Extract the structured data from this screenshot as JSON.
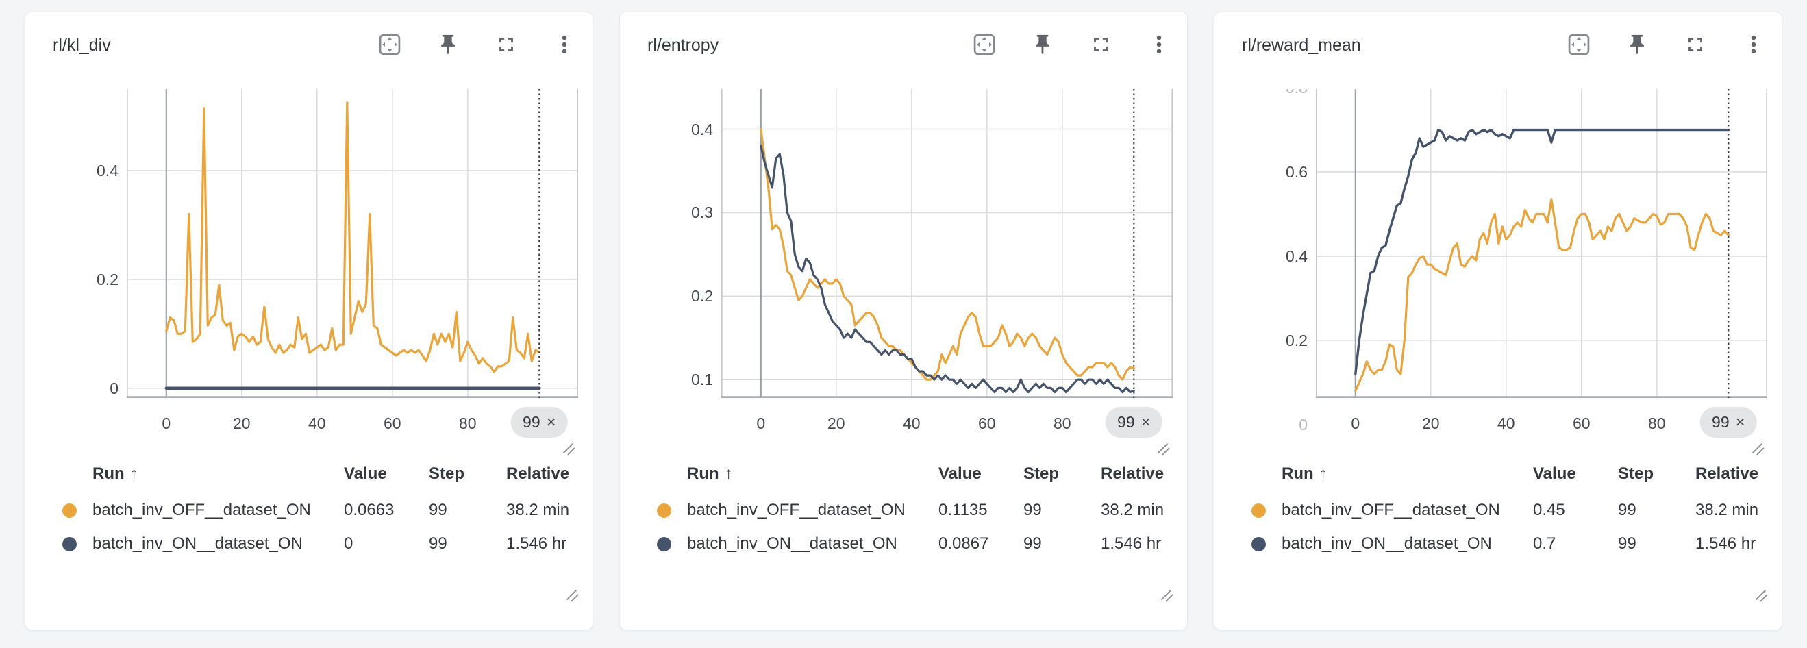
{
  "page": {
    "background": "#f4f5f6"
  },
  "colors": {
    "run_off": "#E9A53C",
    "run_on": "#45536B",
    "badge_bg": "#e4e5e7",
    "grid": "#d9dadc",
    "axis": "#a9acb0"
  },
  "icons": [
    "pan-view-icon",
    "pin-icon",
    "fullscreen-icon",
    "kebab-menu-icon",
    "resize-handle-icon",
    "dismiss-icon"
  ],
  "legend_header": {
    "run": "Run",
    "sort": "↑",
    "value": "Value",
    "step": "Step",
    "relative": "Relative"
  },
  "panels": [
    {
      "title": "rl/kl_div",
      "badge": {
        "step": "99",
        "dismiss": "×"
      },
      "legend": {
        "rows": [
          {
            "run": "batch_inv_OFF__dataset_ON",
            "value": "0.0663",
            "step": "99",
            "relative": "38.2 min"
          },
          {
            "run": "batch_inv_ON__dataset_ON",
            "value": "0",
            "step": "99",
            "relative": "1.546 hr"
          }
        ]
      }
    },
    {
      "title": "rl/entropy",
      "badge": {
        "step": "99",
        "dismiss": "×"
      },
      "legend": {
        "rows": [
          {
            "run": "batch_inv_OFF__dataset_ON",
            "value": "0.1135",
            "step": "99",
            "relative": "38.2 min"
          },
          {
            "run": "batch_inv_ON__dataset_ON",
            "value": "0.0867",
            "step": "99",
            "relative": "1.546 hr"
          }
        ]
      }
    },
    {
      "title": "rl/reward_mean",
      "badge": {
        "step": "99",
        "dismiss": "×"
      },
      "legend": {
        "rows": [
          {
            "run": "batch_inv_OFF__dataset_ON",
            "value": "0.45",
            "step": "99",
            "relative": "38.2 min"
          },
          {
            "run": "batch_inv_ON__dataset_ON",
            "value": "0.7",
            "step": "99",
            "relative": "1.546 hr"
          }
        ]
      }
    }
  ],
  "chart_data": [
    {
      "type": "line",
      "title": "rl/kl_div",
      "xlabel": "",
      "ylabel": "",
      "xlim": [
        -10.5,
        109.3
      ],
      "ylim": [
        -0.018,
        0.55
      ],
      "xticks": [
        0,
        20,
        40,
        60,
        80
      ],
      "yticks": [
        {
          "v": 0,
          "label": "0"
        },
        {
          "v": 0.2,
          "label": "0.2"
        },
        {
          "v": 0.4,
          "label": "0.4"
        }
      ],
      "crosshair_x": 99,
      "grid": true,
      "legend_position": "below",
      "series": [
        {
          "name": "batch_inv_OFF__dataset_ON",
          "color": "#E9A53C",
          "width": 3.2,
          "values": [
            0.105,
            0.13,
            0.125,
            0.1,
            0.1,
            0.105,
            0.32,
            0.085,
            0.09,
            0.1,
            0.515,
            0.115,
            0.13,
            0.135,
            0.19,
            0.125,
            0.115,
            0.12,
            0.07,
            0.095,
            0.1,
            0.095,
            0.085,
            0.095,
            0.08,
            0.085,
            0.15,
            0.09,
            0.075,
            0.065,
            0.08,
            0.065,
            0.07,
            0.08,
            0.075,
            0.13,
            0.09,
            0.1,
            0.065,
            0.07,
            0.075,
            0.08,
            0.07,
            0.075,
            0.11,
            0.07,
            0.08,
            0.08,
            0.525,
            0.1,
            0.13,
            0.16,
            0.14,
            0.155,
            0.32,
            0.115,
            0.11,
            0.08,
            0.075,
            0.07,
            0.065,
            0.06,
            0.065,
            0.07,
            0.065,
            0.07,
            0.065,
            0.07,
            0.06,
            0.05,
            0.07,
            0.1,
            0.08,
            0.1,
            0.085,
            0.1,
            0.075,
            0.14,
            0.05,
            0.065,
            0.085,
            0.07,
            0.06,
            0.045,
            0.055,
            0.045,
            0.04,
            0.03,
            0.04,
            0.04,
            0.045,
            0.05,
            0.13,
            0.07,
            0.065,
            0.055,
            0.1,
            0.05,
            0.07,
            0.0663
          ]
        },
        {
          "name": "batch_inv_ON__dataset_ON",
          "color": "#45536B",
          "width": 4.5,
          "values": [
            0,
            0,
            0,
            0,
            0,
            0,
            0,
            0,
            0,
            0,
            0,
            0,
            0,
            0,
            0,
            0,
            0,
            0,
            0,
            0,
            0,
            0,
            0,
            0,
            0,
            0,
            0,
            0,
            0,
            0,
            0,
            0,
            0,
            0,
            0,
            0,
            0,
            0,
            0,
            0,
            0,
            0,
            0,
            0,
            0,
            0,
            0,
            0,
            0,
            0,
            0,
            0,
            0,
            0,
            0,
            0,
            0,
            0,
            0,
            0,
            0,
            0,
            0,
            0,
            0,
            0,
            0,
            0,
            0,
            0,
            0,
            0,
            0,
            0,
            0,
            0,
            0,
            0,
            0,
            0,
            0,
            0,
            0,
            0,
            0,
            0,
            0,
            0,
            0,
            0,
            0,
            0,
            0,
            0,
            0,
            0,
            0,
            0,
            0,
            0
          ]
        }
      ]
    },
    {
      "type": "line",
      "title": "rl/entropy",
      "xlabel": "",
      "ylabel": "",
      "xlim": [
        -10.5,
        109.3
      ],
      "ylim": [
        0.078,
        0.448
      ],
      "xticks": [
        0,
        20,
        40,
        60,
        80
      ],
      "yticks": [
        {
          "v": 0.1,
          "label": "0.1"
        },
        {
          "v": 0.2,
          "label": "0.2"
        },
        {
          "v": 0.3,
          "label": "0.3"
        },
        {
          "v": 0.4,
          "label": "0.4"
        }
      ],
      "crosshair_x": 99,
      "grid": true,
      "legend_position": "below",
      "series": [
        {
          "name": "batch_inv_OFF__dataset_ON",
          "color": "#E9A53C",
          "width": 3.2,
          "values": [
            0.4,
            0.365,
            0.33,
            0.28,
            0.285,
            0.28,
            0.26,
            0.23,
            0.225,
            0.21,
            0.195,
            0.2,
            0.21,
            0.22,
            0.215,
            0.21,
            0.215,
            0.22,
            0.215,
            0.215,
            0.22,
            0.215,
            0.2,
            0.195,
            0.19,
            0.165,
            0.17,
            0.175,
            0.18,
            0.18,
            0.175,
            0.165,
            0.15,
            0.145,
            0.14,
            0.14,
            0.135,
            0.135,
            0.13,
            0.125,
            0.12,
            0.115,
            0.11,
            0.105,
            0.1,
            0.1,
            0.105,
            0.11,
            0.13,
            0.12,
            0.13,
            0.14,
            0.13,
            0.155,
            0.165,
            0.175,
            0.18,
            0.175,
            0.155,
            0.14,
            0.14,
            0.14,
            0.145,
            0.15,
            0.165,
            0.155,
            0.14,
            0.145,
            0.155,
            0.15,
            0.14,
            0.15,
            0.155,
            0.15,
            0.14,
            0.135,
            0.13,
            0.14,
            0.15,
            0.145,
            0.13,
            0.12,
            0.115,
            0.11,
            0.105,
            0.105,
            0.11,
            0.115,
            0.115,
            0.12,
            0.12,
            0.12,
            0.115,
            0.12,
            0.115,
            0.105,
            0.1,
            0.11,
            0.115,
            0.1135
          ]
        },
        {
          "name": "batch_inv_ON__dataset_ON",
          "color": "#45536B",
          "width": 3.2,
          "values": [
            0.38,
            0.36,
            0.345,
            0.33,
            0.365,
            0.37,
            0.345,
            0.3,
            0.29,
            0.25,
            0.235,
            0.23,
            0.245,
            0.24,
            0.225,
            0.22,
            0.21,
            0.19,
            0.18,
            0.17,
            0.165,
            0.16,
            0.15,
            0.155,
            0.15,
            0.16,
            0.155,
            0.15,
            0.145,
            0.145,
            0.14,
            0.135,
            0.13,
            0.135,
            0.13,
            0.135,
            0.135,
            0.13,
            0.13,
            0.125,
            0.125,
            0.115,
            0.11,
            0.11,
            0.105,
            0.105,
            0.1,
            0.105,
            0.1,
            0.105,
            0.1,
            0.1,
            0.095,
            0.1,
            0.095,
            0.09,
            0.095,
            0.09,
            0.095,
            0.1,
            0.095,
            0.09,
            0.085,
            0.09,
            0.09,
            0.085,
            0.09,
            0.085,
            0.09,
            0.1,
            0.09,
            0.085,
            0.09,
            0.095,
            0.09,
            0.095,
            0.09,
            0.09,
            0.085,
            0.09,
            0.09,
            0.085,
            0.09,
            0.095,
            0.1,
            0.1,
            0.095,
            0.1,
            0.1,
            0.095,
            0.1,
            0.095,
            0.1,
            0.095,
            0.09,
            0.09,
            0.085,
            0.09,
            0.085,
            0.0867
          ]
        }
      ]
    },
    {
      "type": "line",
      "title": "rl/reward_mean",
      "xlabel": "",
      "ylabel": "",
      "xlim": [
        -10.5,
        109.3
      ],
      "ylim": [
        0.063,
        0.797
      ],
      "xticks": [
        0,
        20,
        40,
        60,
        80
      ],
      "yticks": [
        {
          "v": 0,
          "label": "0",
          "faded": true
        },
        {
          "v": 0.2,
          "label": "0.2"
        },
        {
          "v": 0.4,
          "label": "0.4"
        },
        {
          "v": 0.6,
          "label": "0.6"
        },
        {
          "v": 0.8,
          "label": "0.8",
          "faded": true
        }
      ],
      "crosshair_x": 99,
      "grid": true,
      "legend_position": "below",
      "series": [
        {
          "name": "batch_inv_OFF__dataset_ON",
          "color": "#E9A53C",
          "width": 3.2,
          "values": [
            0.08,
            0.1,
            0.12,
            0.15,
            0.13,
            0.12,
            0.13,
            0.13,
            0.15,
            0.19,
            0.185,
            0.13,
            0.12,
            0.2,
            0.35,
            0.36,
            0.38,
            0.395,
            0.4,
            0.38,
            0.38,
            0.37,
            0.365,
            0.36,
            0.355,
            0.39,
            0.42,
            0.43,
            0.38,
            0.375,
            0.39,
            0.4,
            0.39,
            0.44,
            0.455,
            0.43,
            0.48,
            0.5,
            0.43,
            0.47,
            0.44,
            0.45,
            0.47,
            0.48,
            0.47,
            0.51,
            0.49,
            0.48,
            0.5,
            0.5,
            0.5,
            0.48,
            0.535,
            0.48,
            0.42,
            0.415,
            0.415,
            0.42,
            0.46,
            0.49,
            0.5,
            0.5,
            0.48,
            0.44,
            0.45,
            0.46,
            0.44,
            0.47,
            0.46,
            0.49,
            0.5,
            0.48,
            0.46,
            0.47,
            0.49,
            0.485,
            0.48,
            0.48,
            0.49,
            0.5,
            0.495,
            0.475,
            0.48,
            0.5,
            0.5,
            0.5,
            0.5,
            0.49,
            0.47,
            0.42,
            0.415,
            0.45,
            0.48,
            0.5,
            0.49,
            0.46,
            0.455,
            0.45,
            0.46,
            0.45
          ]
        },
        {
          "name": "batch_inv_ON__dataset_ON",
          "color": "#45536B",
          "width": 3.4,
          "values": [
            0.12,
            0.2,
            0.26,
            0.31,
            0.36,
            0.365,
            0.4,
            0.42,
            0.425,
            0.46,
            0.49,
            0.52,
            0.525,
            0.56,
            0.59,
            0.63,
            0.645,
            0.68,
            0.66,
            0.665,
            0.67,
            0.675,
            0.7,
            0.695,
            0.675,
            0.685,
            0.68,
            0.675,
            0.68,
            0.675,
            0.695,
            0.7,
            0.69,
            0.695,
            0.7,
            0.695,
            0.7,
            0.69,
            0.685,
            0.69,
            0.685,
            0.68,
            0.7,
            0.7,
            0.7,
            0.7,
            0.7,
            0.7,
            0.7,
            0.7,
            0.7,
            0.7,
            0.67,
            0.7,
            0.7,
            0.7,
            0.7,
            0.7,
            0.7,
            0.7,
            0.7,
            0.7,
            0.7,
            0.7,
            0.7,
            0.7,
            0.7,
            0.7,
            0.7,
            0.7,
            0.7,
            0.7,
            0.7,
            0.7,
            0.7,
            0.7,
            0.7,
            0.7,
            0.7,
            0.7,
            0.7,
            0.7,
            0.7,
            0.7,
            0.7,
            0.7,
            0.7,
            0.7,
            0.7,
            0.7,
            0.7,
            0.7,
            0.7,
            0.7,
            0.7,
            0.7,
            0.7,
            0.7,
            0.7,
            0.7
          ]
        }
      ]
    }
  ]
}
